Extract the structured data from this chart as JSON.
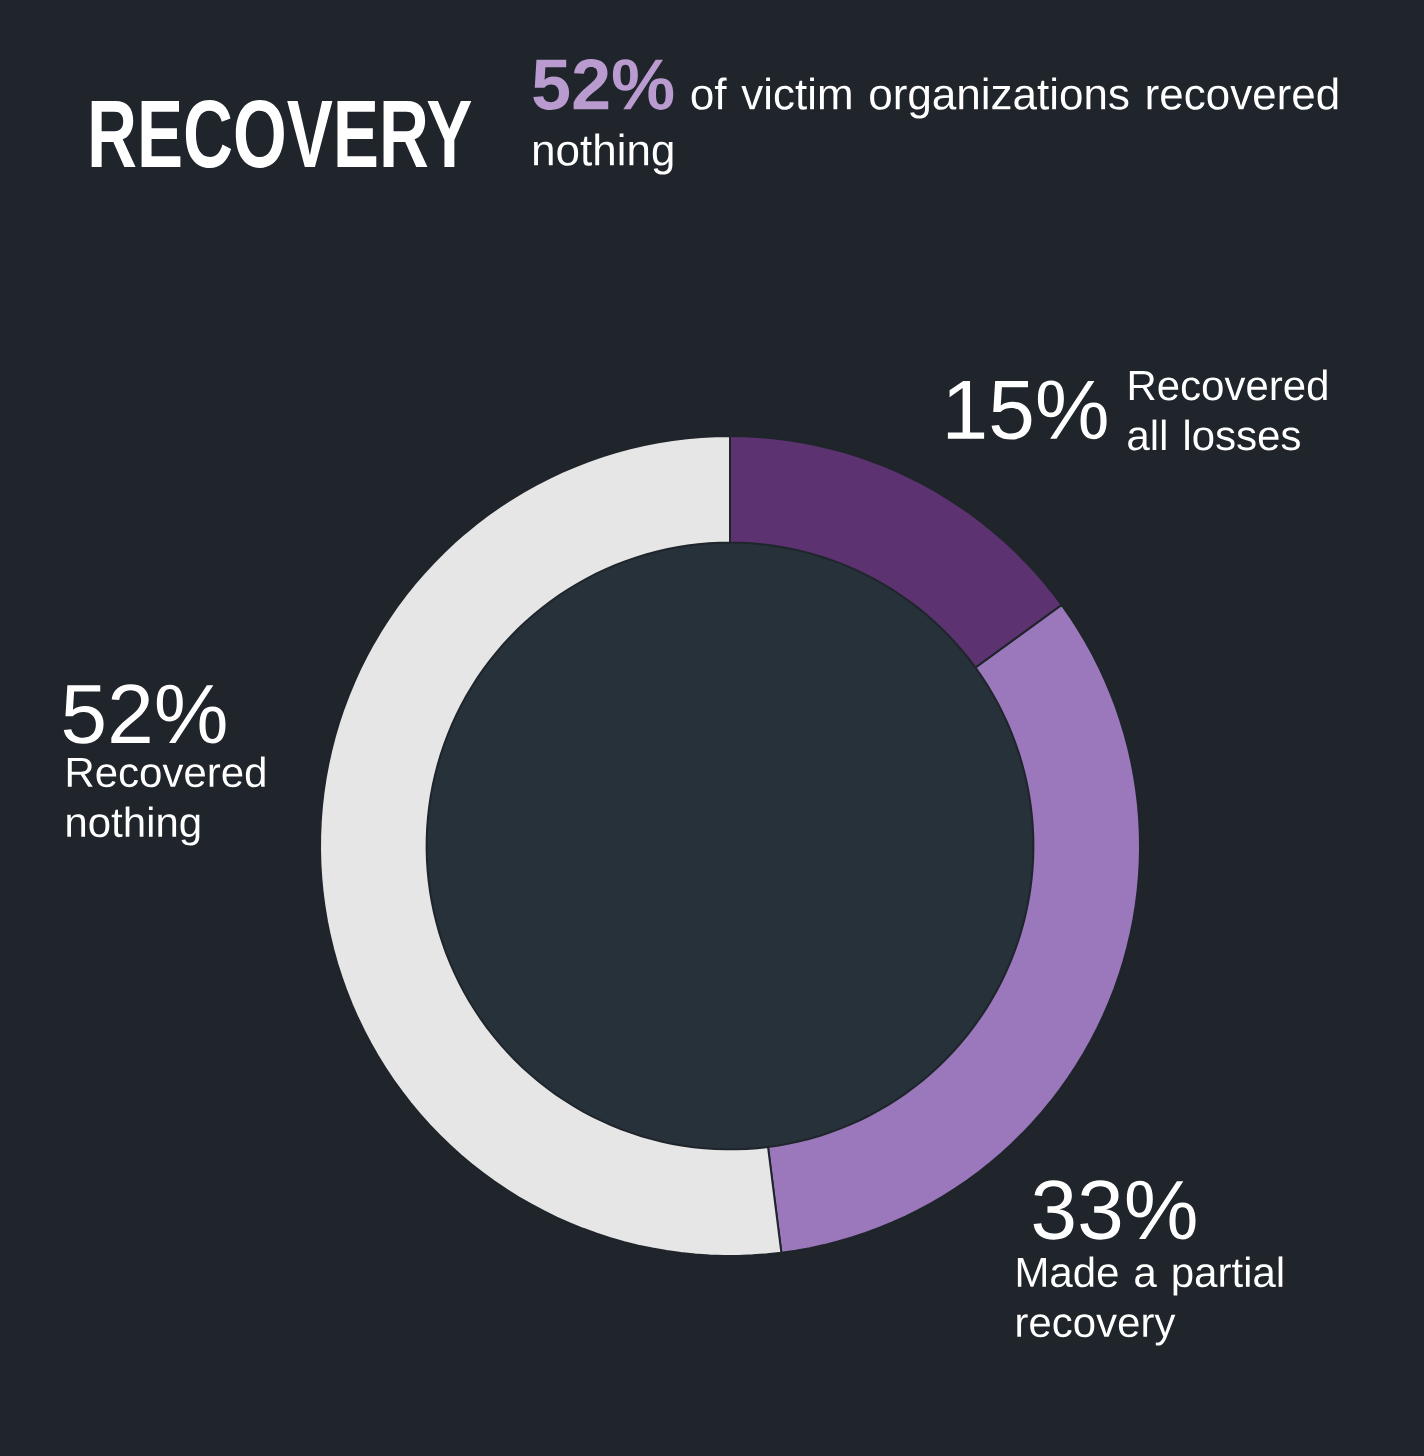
{
  "chart_data": {
    "type": "donut",
    "title": "RECOVERY",
    "subtitle": "**52%** of victim organizations recovered nothing",
    "categories": [
      "Recovered all losses",
      "Made a partial recovery",
      "Recovered nothing"
    ],
    "values": [
      15,
      33,
      52
    ],
    "colors": [
      "#5c3370",
      "#9b78bb",
      "#e6e6e6"
    ],
    "value_labels": [
      "15%",
      "33%",
      "52%"
    ]
  }
}
